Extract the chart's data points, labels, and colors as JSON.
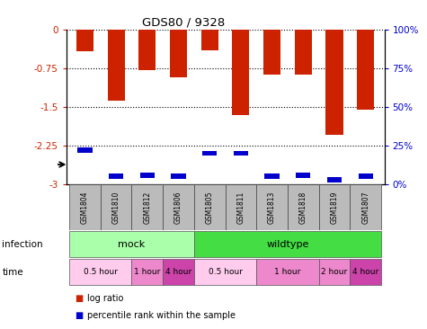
{
  "title": "GDS80 / 9328",
  "samples": [
    "GSM1804",
    "GSM1810",
    "GSM1812",
    "GSM1806",
    "GSM1805",
    "GSM1811",
    "GSM1813",
    "GSM1818",
    "GSM1819",
    "GSM1807"
  ],
  "log_ratio": [
    -0.42,
    -1.38,
    -0.78,
    -0.92,
    -0.4,
    -1.65,
    -0.88,
    -0.88,
    -2.05,
    -1.55
  ],
  "percentile": [
    22,
    5,
    6,
    5,
    20,
    20,
    5,
    6,
    3,
    5
  ],
  "ylim_left": [
    -3,
    0
  ],
  "ylim_right": [
    0,
    100
  ],
  "yticks_left": [
    0,
    -0.75,
    -1.5,
    -2.25,
    -3
  ],
  "yticks_right": [
    100,
    75,
    50,
    25,
    0
  ],
  "bar_color": "#cc2200",
  "percentile_color": "#0000cc",
  "infection_groups": [
    {
      "label": "mock",
      "start": 0,
      "end": 4,
      "color": "#aaffaa"
    },
    {
      "label": "wildtype",
      "start": 4,
      "end": 10,
      "color": "#44dd44"
    }
  ],
  "time_colors": {
    "0.5 hour": "#ffccee",
    "1 hour": "#ee88cc",
    "2 hour": "#ee88cc",
    "4 hour": "#cc44aa"
  },
  "time_groups": [
    {
      "label": "0.5 hour",
      "start": 0,
      "end": 2
    },
    {
      "label": "1 hour",
      "start": 2,
      "end": 3
    },
    {
      "label": "4 hour",
      "start": 3,
      "end": 4
    },
    {
      "label": "0.5 hour",
      "start": 4,
      "end": 6
    },
    {
      "label": "1 hour",
      "start": 6,
      "end": 8
    },
    {
      "label": "2 hour",
      "start": 8,
      "end": 9
    },
    {
      "label": "4 hour",
      "start": 9,
      "end": 10
    }
  ],
  "bar_width": 0.55,
  "sample_bg": "#bbbbbb",
  "plot_bg": "#ffffff",
  "left_color": "#cc2200",
  "right_color": "#0000cc"
}
